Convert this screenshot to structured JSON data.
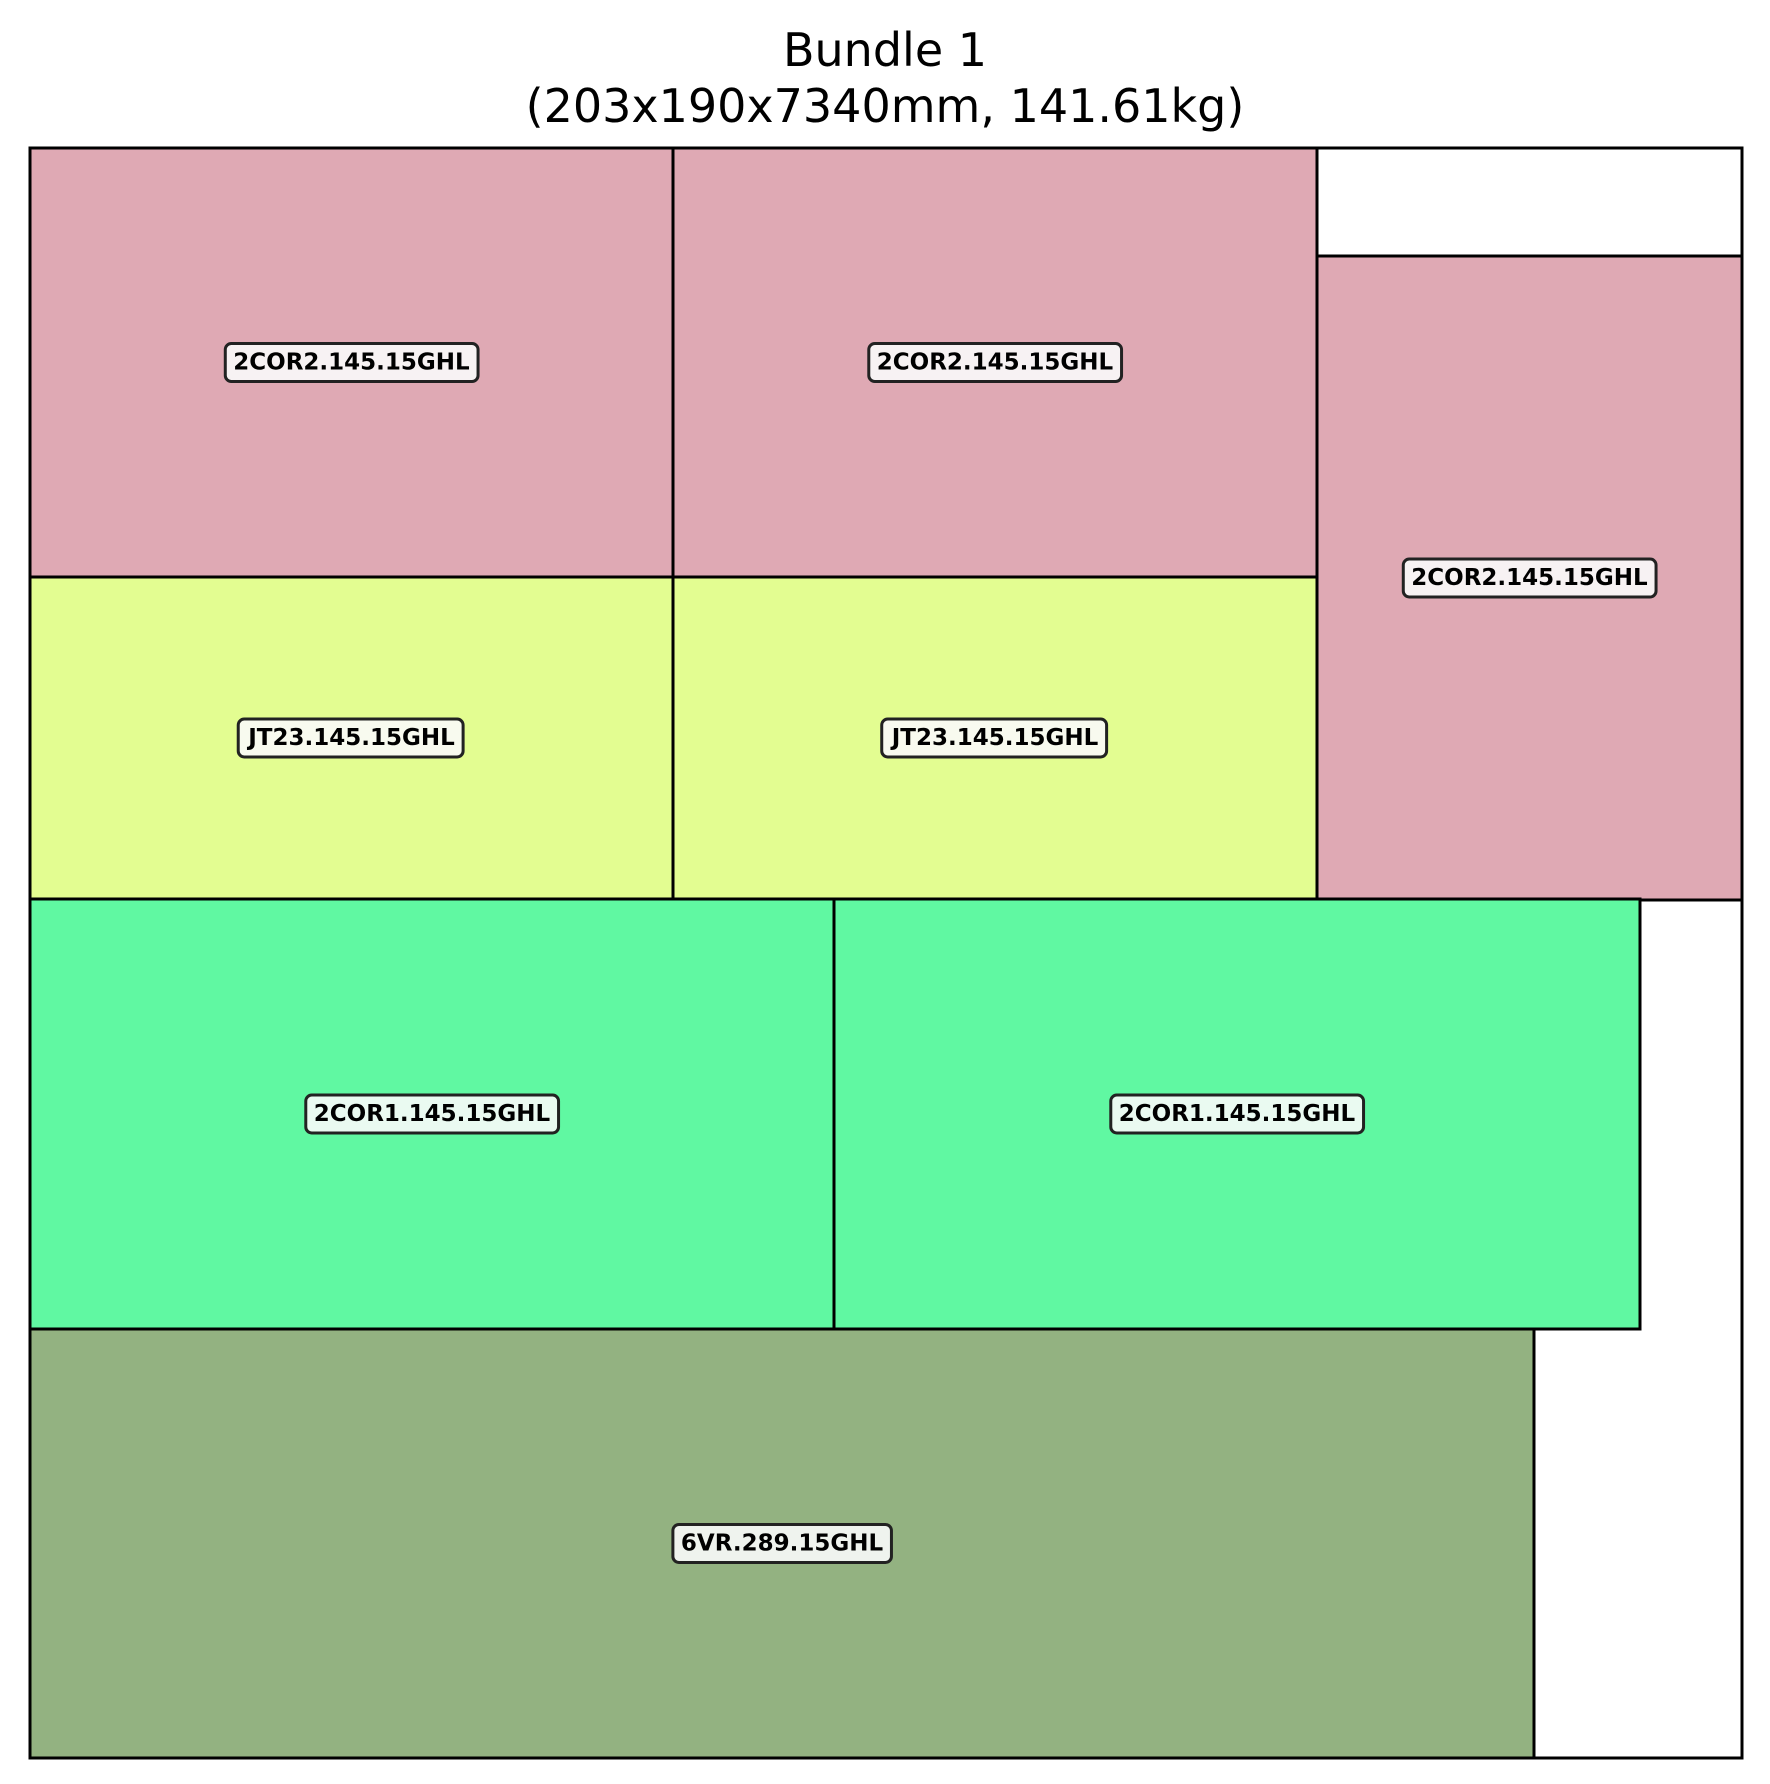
{
  "title": {
    "line1": "Bundle 1",
    "line2": "(203x190x7340mm, 141.61kg)"
  },
  "colors": {
    "2COR2": "#dfa9b4",
    "JT23": "#e3fd91",
    "2COR1": "#60f8a2",
    "6VR": "#93b281",
    "label_box": "#fafafa",
    "outline": "#000000"
  },
  "pieces": [
    {
      "id": "p1",
      "label": "2COR2.145.15GHL",
      "color_key": "2COR2"
    },
    {
      "id": "p2",
      "label": "2COR2.145.15GHL",
      "color_key": "2COR2"
    },
    {
      "id": "p3",
      "label": "2COR2.145.15GHL",
      "color_key": "2COR2"
    },
    {
      "id": "p4",
      "label": "JT23.145.15GHL",
      "color_key": "JT23"
    },
    {
      "id": "p5",
      "label": "JT23.145.15GHL",
      "color_key": "JT23"
    },
    {
      "id": "p6",
      "label": "2COR1.145.15GHL",
      "color_key": "2COR1"
    },
    {
      "id": "p7",
      "label": "2COR1.145.15GHL",
      "color_key": "2COR1"
    },
    {
      "id": "p8",
      "label": "6VR.289.15GHL",
      "color_key": "6VR"
    }
  ]
}
